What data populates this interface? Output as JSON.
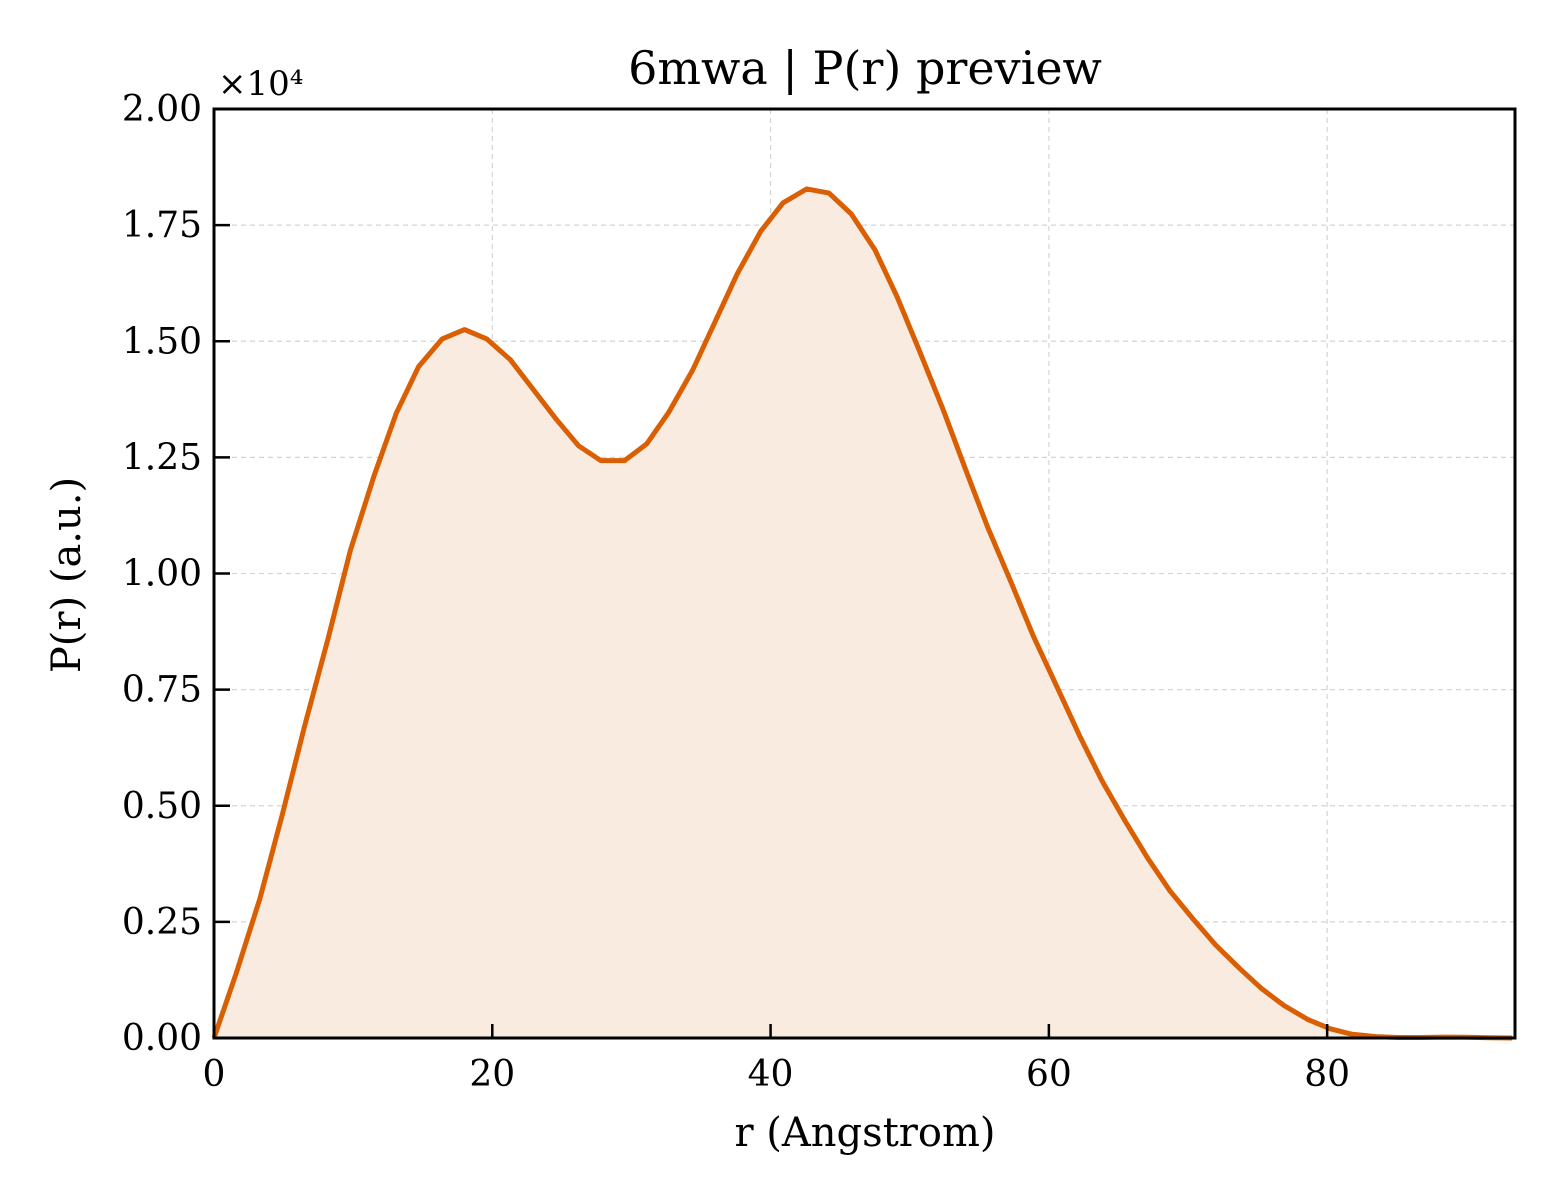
{
  "chart_data": {
    "type": "area",
    "title": "6mwa | P(r) preview",
    "xlabel": "r (Angstrom)",
    "ylabel": "P(r) (a.u.)",
    "y_offset_label": "×10⁴",
    "xlim": [
      0,
      93.5
    ],
    "ylim": [
      0,
      2.0
    ],
    "x_ticks": [
      0,
      20,
      40,
      60,
      80
    ],
    "x_tick_labels": [
      "0",
      "20",
      "40",
      "60",
      "80"
    ],
    "y_ticks": [
      0,
      0.25,
      0.5,
      0.75,
      1.0,
      1.25,
      1.5,
      1.75,
      2.0
    ],
    "y_tick_labels": [
      "0.00",
      "0.25",
      "0.50",
      "0.75",
      "1.00",
      "1.25",
      "1.50",
      "1.75",
      "2.00"
    ],
    "grid": true,
    "line_color": "#d95f02",
    "fill_color": "#f9ebe0",
    "series": [
      {
        "x": [
          0,
          1.6,
          3.3,
          4.9,
          6.5,
          8.2,
          9.8,
          11.5,
          13.1,
          14.7,
          16.4,
          18.0,
          19.6,
          21.3,
          22.9,
          24.6,
          26.2,
          27.8,
          29.5,
          31.1,
          32.7,
          34.4,
          36.0,
          37.6,
          39.3,
          40.9,
          42.6,
          44.2,
          45.8,
          47.5,
          49.1,
          50.7,
          52.4,
          54.0,
          55.6,
          57.3,
          58.9,
          60.6,
          62.2,
          63.8,
          65.5,
          67.1,
          68.7,
          70.4,
          72.0,
          73.7,
          75.3,
          76.9,
          78.6,
          80.2,
          81.8,
          83.5,
          85.1,
          86.7,
          88.4,
          90.0,
          91.7,
          93.3
        ],
        "values": [
          0.0,
          0.14,
          0.3,
          0.48,
          0.67,
          0.86,
          1.05,
          1.21,
          1.345,
          1.445,
          1.505,
          1.525,
          1.505,
          1.46,
          1.398,
          1.332,
          1.275,
          1.243,
          1.243,
          1.279,
          1.348,
          1.438,
          1.541,
          1.645,
          1.737,
          1.798,
          1.828,
          1.819,
          1.774,
          1.697,
          1.595,
          1.479,
          1.353,
          1.225,
          1.1,
          0.98,
          0.864,
          0.755,
          0.651,
          0.555,
          0.466,
          0.387,
          0.317,
          0.255,
          0.2,
          0.15,
          0.106,
          0.07,
          0.04,
          0.02,
          0.008,
          0.003,
          0.001,
          0.001,
          0.002,
          0.0015,
          0.0005,
          0.0
        ]
      }
    ]
  }
}
